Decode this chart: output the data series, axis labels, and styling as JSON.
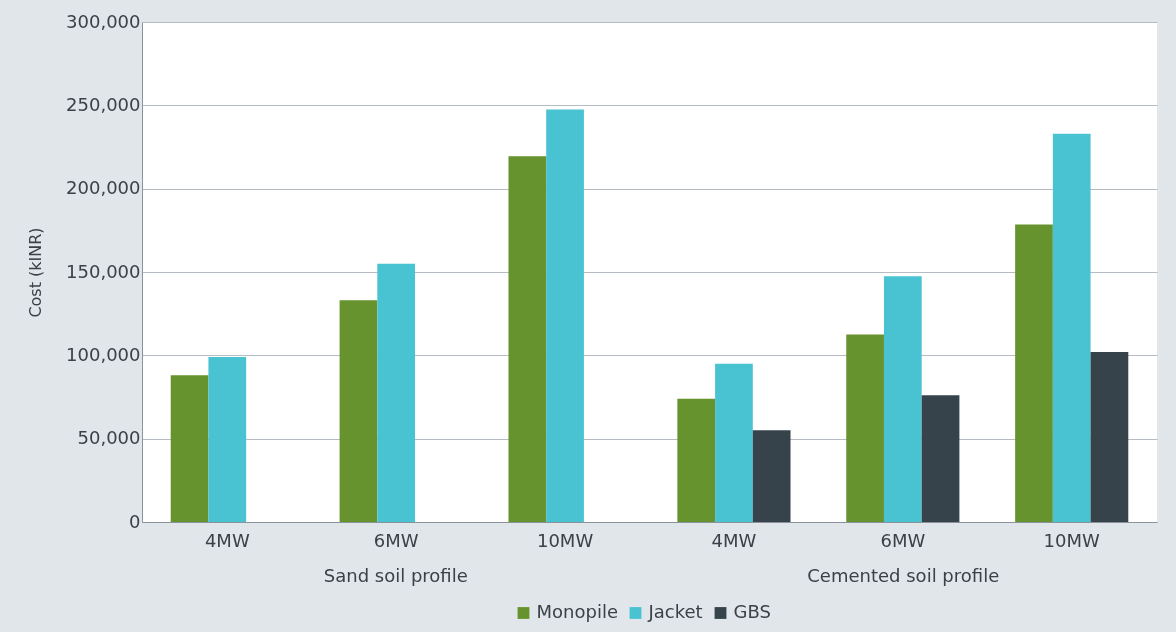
{
  "chart_data": {
    "type": "bar",
    "ylabel": "Cost (kINR)",
    "categories": [
      "4MW",
      "6MW",
      "10MW",
      "4MW",
      "6MW",
      "10MW"
    ],
    "series": [
      {
        "name": "Monopile",
        "color": "#67932e",
        "values": [
          88000,
          133000,
          219500,
          74000,
          112500,
          178500
        ]
      },
      {
        "name": "Jacket",
        "color": "#49c3d2",
        "values": [
          99000,
          155000,
          247500,
          95000,
          147500,
          233000
        ]
      },
      {
        "name": "GBS",
        "color": "#36434b",
        "values": [
          null,
          null,
          null,
          55000,
          76000,
          102000
        ]
      }
    ],
    "annotations": [
      "Sand soil profile",
      "Cemented soil profile"
    ],
    "ylim": [
      0,
      300000
    ],
    "yticks": [
      0,
      {
        "value": 50000,
        "label": "50,000"
      },
      {
        "value": 100000,
        "label": "100,000"
      },
      {
        "value": 150000,
        "label": "150,000"
      },
      {
        "value": 200000,
        "label": "200,000"
      },
      {
        "value": 250000,
        "label": "250,000"
      },
      {
        "value": 300000,
        "label": "300,000"
      }
    ],
    "grid": "y",
    "legend": "bottom"
  }
}
